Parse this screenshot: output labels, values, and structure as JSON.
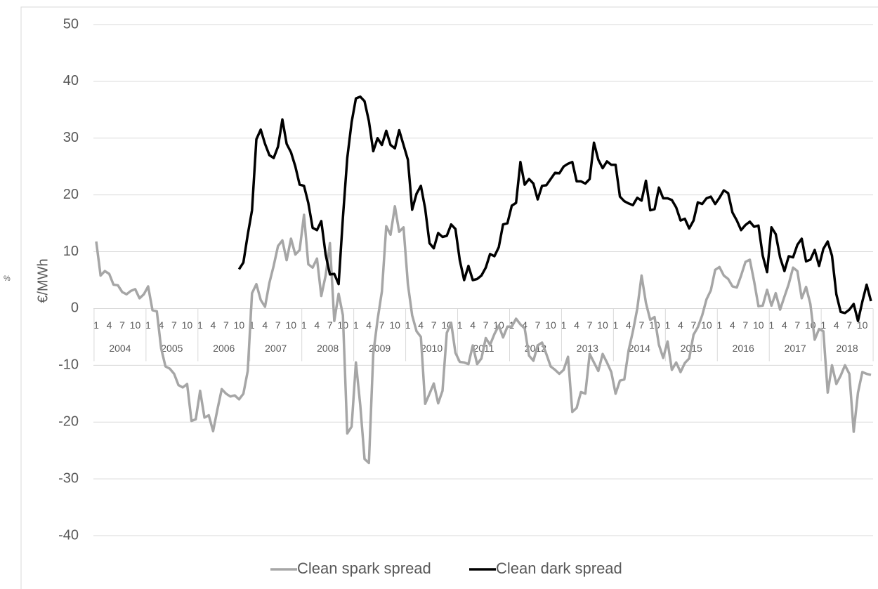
{
  "chart_data": {
    "type": "line",
    "y_axis_label": "€/MWh",
    "side_note": "%",
    "categories": [
      "1",
      null,
      null,
      "4",
      null,
      null,
      "7",
      null,
      null,
      "10",
      null,
      null,
      "1",
      null,
      null,
      "4",
      null,
      null,
      "7",
      null,
      null,
      "10",
      null,
      null,
      "1",
      null,
      null,
      "4",
      null,
      null,
      "7",
      null,
      null,
      "10",
      null,
      null,
      "1",
      null,
      null,
      "4",
      null,
      null,
      "7",
      null,
      null,
      "10",
      null,
      null,
      "1",
      null,
      null,
      "4",
      null,
      null,
      "7",
      null,
      null,
      "10",
      null,
      null,
      "1",
      null,
      null,
      "4",
      null,
      null,
      "7",
      null,
      null,
      "10",
      null,
      null,
      "1",
      null,
      null,
      "4",
      null,
      null,
      "7",
      null,
      null,
      "10",
      null,
      null,
      "1",
      null,
      null,
      "4",
      null,
      null,
      "7",
      null,
      null,
      "10",
      null,
      null,
      "1",
      null,
      null,
      "4",
      null,
      null,
      "7",
      null,
      null,
      "10",
      null,
      null,
      "1",
      null,
      null,
      "4",
      null,
      null,
      "7",
      null,
      null,
      "10",
      null,
      null,
      "1",
      null,
      null,
      "4",
      null,
      null,
      "7",
      null,
      null,
      "10",
      null,
      null,
      "1",
      null,
      null,
      "4",
      null,
      null,
      "7",
      null,
      null,
      "10",
      null,
      null,
      "1",
      null,
      null,
      "4",
      null,
      null,
      "7",
      null,
      null,
      "10",
      null,
      null,
      "1",
      null,
      null,
      "4",
      null,
      null,
      "7",
      null,
      null,
      "10",
      null,
      null,
      "1",
      null,
      null,
      "4",
      null,
      null,
      "7",
      null,
      null,
      "10",
      null,
      null
    ],
    "year_labels": [
      "2004",
      "2005",
      "2006",
      "2007",
      "2008",
      "2009",
      "2010",
      "2011",
      "2012",
      "2013",
      "2014",
      "2015",
      "2016",
      "2017",
      "2018"
    ],
    "series": [
      {
        "name": "Clean spark spread",
        "color": "#a6a6a6",
        "values": [
          11.8,
          5.8,
          6.6,
          6.1,
          4.2,
          4.1,
          2.9,
          2.5,
          3.1,
          3.4,
          1.8,
          2.5,
          3.9,
          -0.3,
          -0.5,
          -7,
          -10.2,
          -10.6,
          -11.5,
          -13.5,
          -13.9,
          -13.3,
          -19.8,
          -19.5,
          -14.5,
          -19.2,
          -18.8,
          -21.6,
          -17.8,
          -14.2,
          -15,
          -15.5,
          -15.3,
          -16,
          -15,
          -11,
          2.7,
          4.3,
          1.5,
          0.3,
          4.5,
          7.5,
          11,
          12,
          8.5,
          12.3,
          9.5,
          10.3,
          16.5,
          7.8,
          7.2,
          8.8,
          2.2,
          5.8,
          11.5,
          -2.2,
          2.6,
          -1.2,
          -22,
          -20.8,
          -9.5,
          -17,
          -26.5,
          -27.2,
          -8,
          -2,
          3,
          14.5,
          13,
          18,
          13.5,
          14.3,
          4.3,
          -1.2,
          -4,
          -5,
          -16.8,
          -15,
          -13.2,
          -16.7,
          -14.5,
          -4.3,
          -2.5,
          -7.8,
          -9.4,
          -9.5,
          -9.8,
          -6.5,
          -9.8,
          -8.8,
          -5.2,
          -6.4,
          -4.5,
          -3,
          -5.1,
          -3.2,
          -3.2,
          -1.8,
          -2.8,
          -3.5,
          -8.3,
          -9.2,
          -6.5,
          -6,
          -8,
          -10.2,
          -10.8,
          -11.5,
          -10.8,
          -8.5,
          -18.2,
          -17.5,
          -14.7,
          -15,
          -8,
          -9.5,
          -11,
          -8,
          -9.5,
          -11.2,
          -15,
          -12.7,
          -12.5,
          -7.4,
          -4,
          0,
          5.8,
          1,
          -2,
          -1.5,
          -6.4,
          -8.7,
          -5.8,
          -10.8,
          -9.5,
          -11.2,
          -9.6,
          -8.8,
          -4.6,
          -3.3,
          -1.2,
          1.6,
          3.2,
          6.8,
          7.3,
          5.8,
          5.2,
          3.9,
          3.7,
          5.8,
          8.2,
          8.6,
          4.8,
          0.4,
          0.5,
          3.3,
          0.5,
          2.7,
          -0.2,
          2.1,
          4.3,
          7.2,
          6.6,
          1.8,
          3.8,
          0.8,
          -5.5,
          -3.6,
          -4,
          -14.8,
          -10,
          -13.3,
          -11.8,
          -10,
          -11.5,
          -21.7,
          -14.8,
          -11.2,
          -11.5,
          -11.7
        ]
      },
      {
        "name": "Clean dark spread",
        "color": "#000000",
        "values": [
          null,
          null,
          null,
          null,
          null,
          null,
          null,
          null,
          null,
          null,
          null,
          null,
          null,
          null,
          null,
          null,
          null,
          null,
          null,
          null,
          null,
          null,
          null,
          null,
          null,
          null,
          null,
          null,
          null,
          null,
          null,
          null,
          null,
          6.9,
          8.1,
          13,
          17.3,
          29.8,
          31.5,
          29,
          27,
          26.5,
          28.5,
          33.3,
          29,
          27.5,
          25,
          21.8,
          21.6,
          18.6,
          14.2,
          13.8,
          15.4,
          9.5,
          6,
          6.1,
          4.3,
          16,
          26.5,
          32.8,
          37,
          37.3,
          36.5,
          33,
          27.7,
          30,
          28.8,
          31.3,
          28.8,
          28.2,
          31.4,
          28.8,
          26.2,
          17.4,
          20.2,
          21.6,
          17.6,
          11.5,
          10.6,
          13.3,
          12.6,
          12.8,
          14.8,
          14,
          8.5,
          5,
          7.5,
          5,
          5.2,
          5.8,
          7.2,
          9.6,
          9.2,
          10.8,
          14.8,
          15,
          18.1,
          18.6,
          25.8,
          21.8,
          22.8,
          22,
          19.2,
          21.6,
          21.7,
          22.8,
          23.9,
          23.8,
          25,
          25.5,
          25.8,
          22.4,
          22.4,
          22,
          22.8,
          29.2,
          26.2,
          24.7,
          25.9,
          25.3,
          25.3,
          19.7,
          18.9,
          18.5,
          18.2,
          19.5,
          19,
          22.5,
          17.3,
          17.5,
          21.3,
          19.4,
          19.4,
          19.1,
          17.8,
          15.5,
          15.8,
          14.1,
          15.5,
          18.7,
          18.4,
          19.4,
          19.7,
          18.4,
          19.5,
          20.8,
          20.3,
          16.9,
          15.5,
          13.8,
          14.7,
          15.3,
          14.4,
          14.6,
          9.3,
          6.4,
          14.3,
          13.1,
          9,
          6.6,
          9.2,
          9,
          11.2,
          12.3,
          8.3,
          8.6,
          10.3,
          7.5,
          10.5,
          11.8,
          9.3,
          2.5,
          -0.6,
          -0.8,
          -0.2,
          0.8,
          -2.2,
          1.2,
          4.2,
          1.3
        ]
      }
    ],
    "ylim": [
      -40,
      50
    ],
    "yticks": [
      -40,
      -30,
      -20,
      -10,
      0,
      10,
      20,
      30,
      40,
      50
    ],
    "grid": true,
    "legend": "bottom"
  }
}
